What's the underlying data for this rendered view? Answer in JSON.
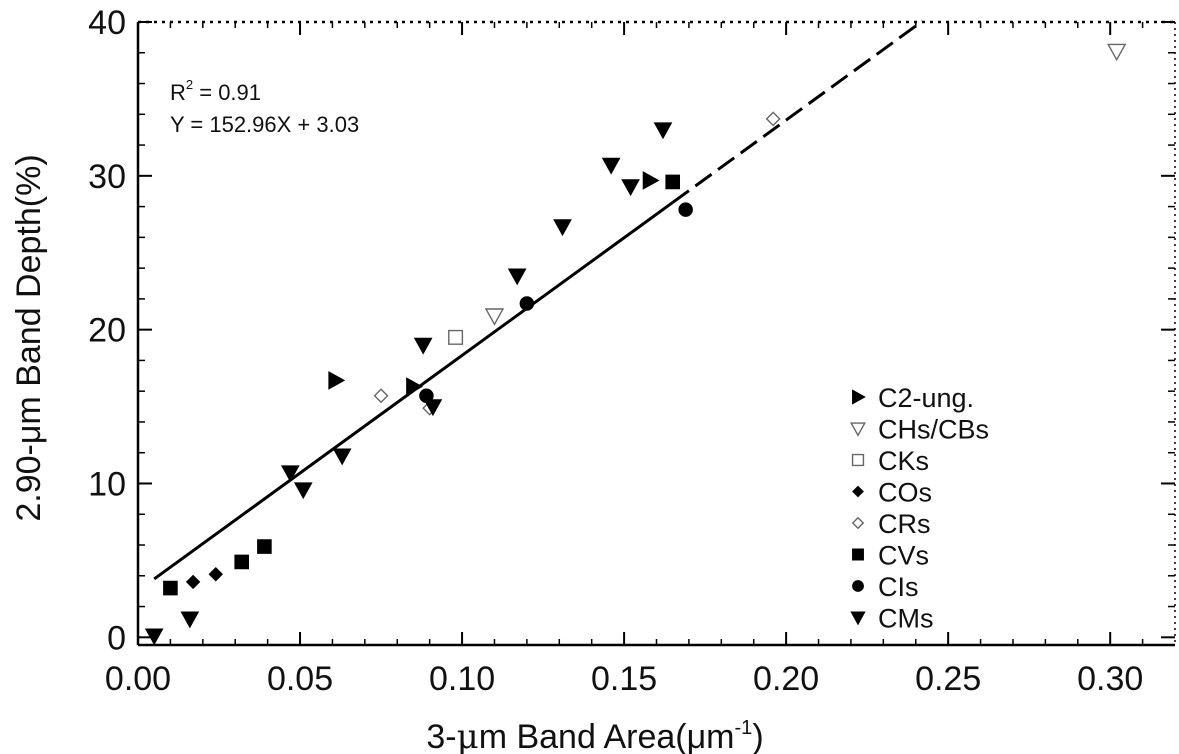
{
  "chart_data": {
    "type": "scatter",
    "xlabel_main": "3-",
    "xlabel_mu": "μ",
    "xlabel_rest": "m Band Area(",
    "xlabel_unit": "μm",
    "xlabel_sup": "-1",
    "xlabel_close": ")",
    "ylabel": "2.90-μm Band Depth(%)",
    "xlim": [
      0.0,
      0.32
    ],
    "ylim": [
      -0.5,
      40
    ],
    "xticks": [
      "0.00",
      "0.05",
      "0.10",
      "0.15",
      "0.20",
      "0.25",
      "0.30"
    ],
    "yticks": [
      "0",
      "10",
      "20",
      "30",
      "40"
    ],
    "annotation": {
      "r2_prefix": "R",
      "r2_sup": "2",
      "r2_value": " = 0.91",
      "equation": "Y = 152.96X + 3.03"
    },
    "fit": {
      "slope": 152.96,
      "intercept": 3.03,
      "solid_x": [
        0.005,
        0.165
      ],
      "dashed_x": [
        0.165,
        0.242
      ]
    },
    "series": [
      {
        "name": "C2-ung.",
        "marker": "triangle-right",
        "filled": true,
        "points": [
          [
            0.061,
            16.7
          ],
          [
            0.085,
            16.3
          ],
          [
            0.158,
            29.7
          ]
        ]
      },
      {
        "name": "CHs/CBs",
        "marker": "triangle-down",
        "filled": false,
        "points": [
          [
            0.302,
            38.1
          ],
          [
            0.11,
            20.9
          ]
        ]
      },
      {
        "name": "CKs",
        "marker": "square",
        "filled": false,
        "points": [
          [
            0.098,
            19.5
          ]
        ]
      },
      {
        "name": "COs",
        "marker": "diamond",
        "filled": true,
        "points": [
          [
            0.017,
            3.6
          ],
          [
            0.024,
            4.1
          ]
        ]
      },
      {
        "name": "CRs",
        "marker": "diamond",
        "filled": false,
        "points": [
          [
            0.075,
            15.7
          ],
          [
            0.09,
            14.9
          ],
          [
            0.196,
            33.7
          ]
        ]
      },
      {
        "name": "CVs",
        "marker": "square",
        "filled": true,
        "points": [
          [
            0.01,
            3.2
          ],
          [
            0.032,
            4.9
          ],
          [
            0.039,
            5.9
          ],
          [
            0.165,
            29.6
          ]
        ]
      },
      {
        "name": "CIs",
        "marker": "circle",
        "filled": true,
        "points": [
          [
            0.089,
            15.7
          ],
          [
            0.12,
            21.7
          ],
          [
            0.169,
            27.8
          ]
        ]
      },
      {
        "name": "CMs",
        "marker": "triangle-down",
        "filled": true,
        "points": [
          [
            0.005,
            0.1
          ],
          [
            0.016,
            1.2
          ],
          [
            0.047,
            10.7
          ],
          [
            0.051,
            9.6
          ],
          [
            0.063,
            11.8
          ],
          [
            0.088,
            19.0
          ],
          [
            0.091,
            15.0
          ],
          [
            0.117,
            23.5
          ],
          [
            0.131,
            26.7
          ],
          [
            0.146,
            30.7
          ],
          [
            0.152,
            29.3
          ],
          [
            0.162,
            33.0
          ]
        ]
      }
    ]
  }
}
